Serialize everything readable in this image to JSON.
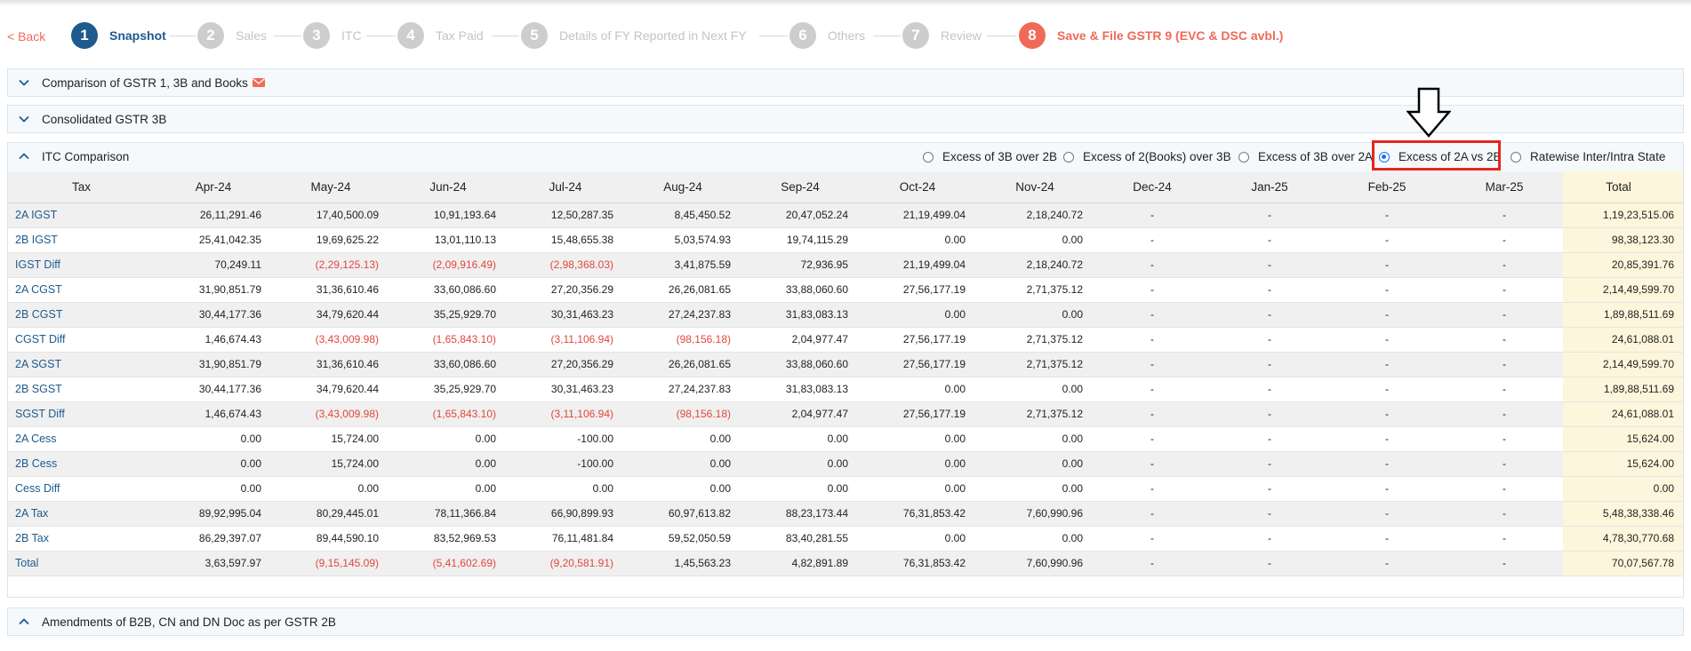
{
  "nav": {
    "back_label": "< Back"
  },
  "steps": [
    {
      "num": "1",
      "label": "Snapshot",
      "state": "active"
    },
    {
      "num": "2",
      "label": "Sales",
      "state": "inactive"
    },
    {
      "num": "3",
      "label": "ITC",
      "state": "inactive"
    },
    {
      "num": "4",
      "label": "Tax Paid",
      "state": "inactive"
    },
    {
      "num": "5",
      "label": "Details of FY Reported in Next FY",
      "state": "inactive"
    },
    {
      "num": "6",
      "label": "Others",
      "state": "inactive"
    },
    {
      "num": "7",
      "label": "Review",
      "state": "inactive"
    },
    {
      "num": "8",
      "label": "Save & File GSTR 9 (EVC & DSC avbl.)",
      "state": "final"
    }
  ],
  "sections": {
    "comparison_title": "Comparison of GSTR 1, 3B and Books",
    "consolidated_title": "Consolidated GSTR 3B",
    "itc_title": "ITC Comparison",
    "amendments_title": "Amendments of B2B, CN and DN Doc as per GSTR 2B"
  },
  "radio_options": [
    {
      "label": "Excess of 3B over 2B",
      "checked": false
    },
    {
      "label": "Excess of 2(Books) over 3B",
      "checked": false
    },
    {
      "label": "Excess of 3B over 2A",
      "checked": false
    },
    {
      "label": "Excess of 2A vs 2B",
      "checked": true
    },
    {
      "label": "Ratewise Inter/Intra State",
      "checked": false
    }
  ],
  "table": {
    "headers": [
      "Tax",
      "Apr-24",
      "May-24",
      "Jun-24",
      "Jul-24",
      "Aug-24",
      "Sep-24",
      "Oct-24",
      "Nov-24",
      "Dec-24",
      "Jan-25",
      "Feb-25",
      "Mar-25",
      "Total"
    ],
    "rows": [
      {
        "label": "2A IGST",
        "cells": [
          "26,11,291.46",
          "17,40,500.09",
          "10,91,193.64",
          "12,50,287.35",
          "8,45,450.52",
          "20,47,052.24",
          "21,19,499.04",
          "2,18,240.72",
          "-",
          "-",
          "-",
          "-",
          "1,19,23,515.06"
        ]
      },
      {
        "label": "2B IGST",
        "cells": [
          "25,41,042.35",
          "19,69,625.22",
          "13,01,110.13",
          "15,48,655.38",
          "5,03,574.93",
          "19,74,115.29",
          "0.00",
          "0.00",
          "-",
          "-",
          "-",
          "-",
          "98,38,123.30"
        ]
      },
      {
        "label": "IGST Diff",
        "cells": [
          "70,249.11",
          "(2,29,125.13)",
          "(2,09,916.49)",
          "(2,98,368.03)",
          "3,41,875.59",
          "72,936.95",
          "21,19,499.04",
          "2,18,240.72",
          "-",
          "-",
          "-",
          "-",
          "20,85,391.76"
        ]
      },
      {
        "label": "2A CGST",
        "cells": [
          "31,90,851.79",
          "31,36,610.46",
          "33,60,086.60",
          "27,20,356.29",
          "26,26,081.65",
          "33,88,060.60",
          "27,56,177.19",
          "2,71,375.12",
          "-",
          "-",
          "-",
          "-",
          "2,14,49,599.70"
        ]
      },
      {
        "label": "2B CGST",
        "cells": [
          "30,44,177.36",
          "34,79,620.44",
          "35,25,929.70",
          "30,31,463.23",
          "27,24,237.83",
          "31,83,083.13",
          "0.00",
          "0.00",
          "-",
          "-",
          "-",
          "-",
          "1,89,88,511.69"
        ]
      },
      {
        "label": "CGST Diff",
        "cells": [
          "1,46,674.43",
          "(3,43,009.98)",
          "(1,65,843.10)",
          "(3,11,106.94)",
          "(98,156.18)",
          "2,04,977.47",
          "27,56,177.19",
          "2,71,375.12",
          "-",
          "-",
          "-",
          "-",
          "24,61,088.01"
        ]
      },
      {
        "label": "2A SGST",
        "cells": [
          "31,90,851.79",
          "31,36,610.46",
          "33,60,086.60",
          "27,20,356.29",
          "26,26,081.65",
          "33,88,060.60",
          "27,56,177.19",
          "2,71,375.12",
          "-",
          "-",
          "-",
          "-",
          "2,14,49,599.70"
        ]
      },
      {
        "label": "2B SGST",
        "cells": [
          "30,44,177.36",
          "34,79,620.44",
          "35,25,929.70",
          "30,31,463.23",
          "27,24,237.83",
          "31,83,083.13",
          "0.00",
          "0.00",
          "-",
          "-",
          "-",
          "-",
          "1,89,88,511.69"
        ]
      },
      {
        "label": "SGST Diff",
        "cells": [
          "1,46,674.43",
          "(3,43,009.98)",
          "(1,65,843.10)",
          "(3,11,106.94)",
          "(98,156.18)",
          "2,04,977.47",
          "27,56,177.19",
          "2,71,375.12",
          "-",
          "-",
          "-",
          "-",
          "24,61,088.01"
        ]
      },
      {
        "label": "2A Cess",
        "cells": [
          "0.00",
          "15,724.00",
          "0.00",
          "-100.00",
          "0.00",
          "0.00",
          "0.00",
          "0.00",
          "-",
          "-",
          "-",
          "-",
          "15,624.00"
        ]
      },
      {
        "label": "2B Cess",
        "cells": [
          "0.00",
          "15,724.00",
          "0.00",
          "-100.00",
          "0.00",
          "0.00",
          "0.00",
          "0.00",
          "-",
          "-",
          "-",
          "-",
          "15,624.00"
        ]
      },
      {
        "label": "Cess Diff",
        "cells": [
          "0.00",
          "0.00",
          "0.00",
          "0.00",
          "0.00",
          "0.00",
          "0.00",
          "0.00",
          "-",
          "-",
          "-",
          "-",
          "0.00"
        ]
      },
      {
        "label": "2A Tax",
        "cells": [
          "89,92,995.04",
          "80,29,445.01",
          "78,11,366.84",
          "66,90,899.93",
          "60,97,613.82",
          "88,23,173.44",
          "76,31,853.42",
          "7,60,990.96",
          "-",
          "-",
          "-",
          "-",
          "5,48,38,338.46"
        ]
      },
      {
        "label": "2B Tax",
        "cells": [
          "86,29,397.07",
          "89,44,590.10",
          "83,52,969.53",
          "76,11,481.84",
          "59,52,050.59",
          "83,40,281.55",
          "0.00",
          "0.00",
          "-",
          "-",
          "-",
          "-",
          "4,78,30,770.68"
        ]
      },
      {
        "label": "Total",
        "cells": [
          "3,63,597.97",
          "(9,15,145.09)",
          "(5,41,602.69)",
          "(9,20,581.91)",
          "1,45,563.23",
          "4,82,891.89",
          "76,31,853.42",
          "7,60,990.96",
          "-",
          "-",
          "-",
          "-",
          "70,07,567.78"
        ]
      }
    ]
  },
  "colors": {
    "brand_blue": "#1e5a8e",
    "accent_red": "#f06a57",
    "negative_red": "#e0473c",
    "total_column_bg": "#fdf6dc",
    "highlight_box": "#e52521"
  },
  "icons": {
    "collapse": "chevron-down-icon",
    "expand": "chevron-up-icon",
    "mail": "mail-icon",
    "annotation": "down-arrow-icon"
  }
}
